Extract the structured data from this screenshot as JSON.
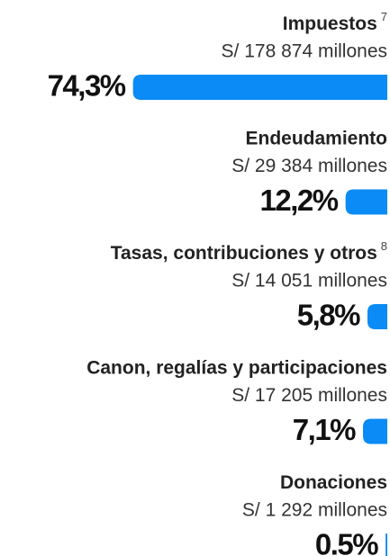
{
  "chart_data": {
    "type": "bar",
    "orientation": "horizontal",
    "color": "#0a8bf5",
    "categories": [
      "Impuestos",
      "Endeudamiento",
      "Tasas, contribuciones y otros",
      "Canon, regalías y participaciones",
      "Donaciones"
    ],
    "notes": [
      "7",
      null,
      "8",
      null,
      null
    ],
    "amounts": [
      "S/ 178 874 millones",
      "S/ 29 384 millones",
      "S/ 14 051 millones",
      "S/ 17 205 millones",
      "S/ 1 292 millones"
    ],
    "values": [
      74.3,
      12.2,
      5.8,
      7.1,
      0.5
    ],
    "value_labels": [
      "74,3%",
      "12,2%",
      "5,8%",
      "7,1%",
      "0.5%"
    ]
  }
}
